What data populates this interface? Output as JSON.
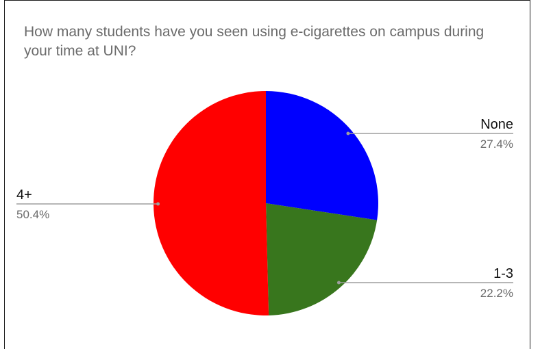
{
  "chart_data": {
    "type": "pie",
    "title": "How many students have you seen using e-cigarettes on campus during your time at UNI?",
    "slices": [
      {
        "label": "None",
        "value": 27.4,
        "percent_label": "27.4%",
        "color": "#0000ff"
      },
      {
        "label": "1-3",
        "value": 22.2,
        "percent_label": "22.2%",
        "color": "#38761d"
      },
      {
        "label": "4+",
        "value": 50.4,
        "percent_label": "50.4%",
        "color": "#ff0000"
      }
    ],
    "legend": "none"
  }
}
